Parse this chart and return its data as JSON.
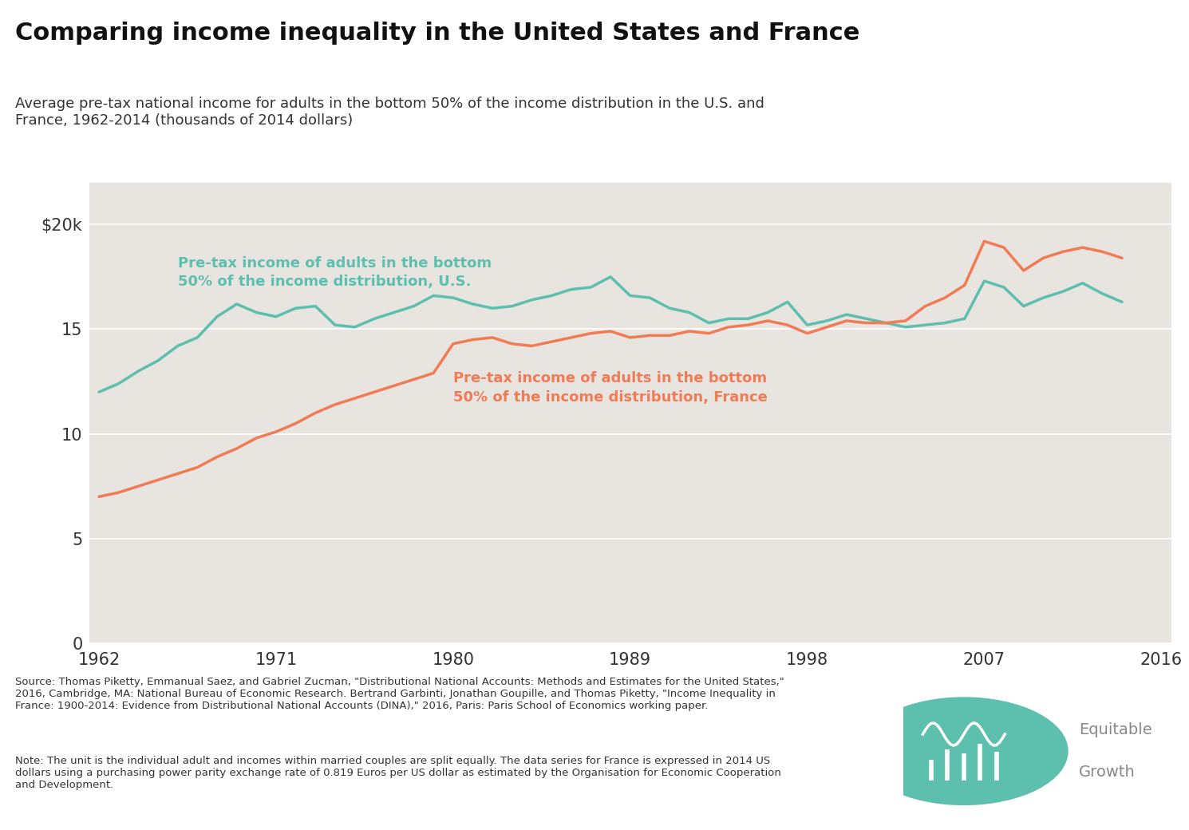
{
  "title": "Comparing income inequality in the United States and France",
  "subtitle": "Average pre-tax national income for adults in the bottom 50% of the income distribution in the U.S. and\nFrance, 1962-2014 (thousands of 2014 dollars)",
  "us_color": "#5dbfad",
  "france_color": "#f07b55",
  "bg_color": "#e8e4e0",
  "white_color": "#ffffff",
  "years": [
    1962,
    1963,
    1964,
    1965,
    1966,
    1967,
    1968,
    1969,
    1970,
    1971,
    1972,
    1973,
    1974,
    1975,
    1976,
    1977,
    1978,
    1979,
    1980,
    1981,
    1982,
    1983,
    1984,
    1985,
    1986,
    1987,
    1988,
    1989,
    1990,
    1991,
    1992,
    1993,
    1994,
    1995,
    1996,
    1997,
    1998,
    1999,
    2000,
    2001,
    2002,
    2003,
    2004,
    2005,
    2006,
    2007,
    2008,
    2009,
    2010,
    2011,
    2012,
    2013,
    2014
  ],
  "us_values": [
    12.0,
    12.4,
    13.0,
    13.5,
    14.2,
    14.6,
    15.6,
    16.2,
    15.8,
    15.6,
    16.0,
    16.1,
    15.2,
    15.1,
    15.5,
    15.8,
    16.1,
    16.6,
    16.5,
    16.2,
    16.0,
    16.1,
    16.4,
    16.6,
    16.9,
    17.0,
    17.5,
    16.6,
    16.5,
    16.0,
    15.8,
    15.3,
    15.5,
    15.5,
    15.8,
    16.3,
    15.2,
    15.4,
    15.7,
    15.5,
    15.3,
    15.1,
    15.2,
    15.3,
    15.5,
    17.3,
    17.0,
    16.1,
    16.5,
    16.8,
    17.2,
    16.7,
    16.3
  ],
  "france_values": [
    7.0,
    7.2,
    7.5,
    7.8,
    8.1,
    8.4,
    8.9,
    9.3,
    9.8,
    10.1,
    10.5,
    11.0,
    11.4,
    11.7,
    12.0,
    12.3,
    12.6,
    12.9,
    14.3,
    14.5,
    14.6,
    14.3,
    14.2,
    14.4,
    14.6,
    14.8,
    14.9,
    14.6,
    14.7,
    14.7,
    14.9,
    14.8,
    15.1,
    15.2,
    15.4,
    15.2,
    14.8,
    15.1,
    15.4,
    15.3,
    15.3,
    15.4,
    16.1,
    16.5,
    17.1,
    19.2,
    18.9,
    17.8,
    18.4,
    18.7,
    18.9,
    18.7,
    18.4
  ],
  "yticks": [
    0,
    5,
    10,
    15,
    20
  ],
  "ytick_labels": [
    "0",
    "5",
    "10",
    "15",
    "$20k"
  ],
  "xticks": [
    1962,
    1971,
    1980,
    1989,
    1998,
    2007,
    2016
  ],
  "ylim": [
    0,
    22
  ],
  "xlim": [
    1961.5,
    2016.5
  ],
  "us_label": "Pre-tax income of adults in the bottom\n50% of the income distribution, U.S.",
  "france_label": "Pre-tax income of adults in the bottom\n50% of the income distribution, France",
  "source_text": "Source: Thomas Piketty, Emmanual Saez, and Gabriel Zucman, \"Distributional National Accounts: Methods and Estimates for the United States,\"\n2016, Cambridge, MA: National Bureau of Economic Research. Bertrand Garbinti, Jonathan Goupille, and Thomas Piketty, \"Income Inequality in\nFrance: 1900-2014: Evidence from Distributional National Accounts (DINA),\" 2016, Paris: Paris School of Economics working paper.",
  "note_text": "Note: The unit is the individual adult and incomes within married couples are split equally. The data series for France is expressed in 2014 US\ndollars using a purchasing power parity exchange rate of 0.819 Euros per US dollar as estimated by the Organisation for Economic Cooperation\nand Development.",
  "line_width": 2.5,
  "grid_color": "#ffffff",
  "spine_color": "#cccccc",
  "tick_label_color": "#333333",
  "title_fontsize": 22,
  "subtitle_fontsize": 13,
  "tick_fontsize": 15,
  "annotation_fontsize": 13,
  "footer_fontsize": 9.5,
  "logo_teal": "#5dbfad",
  "logo_text_color": "#888888"
}
